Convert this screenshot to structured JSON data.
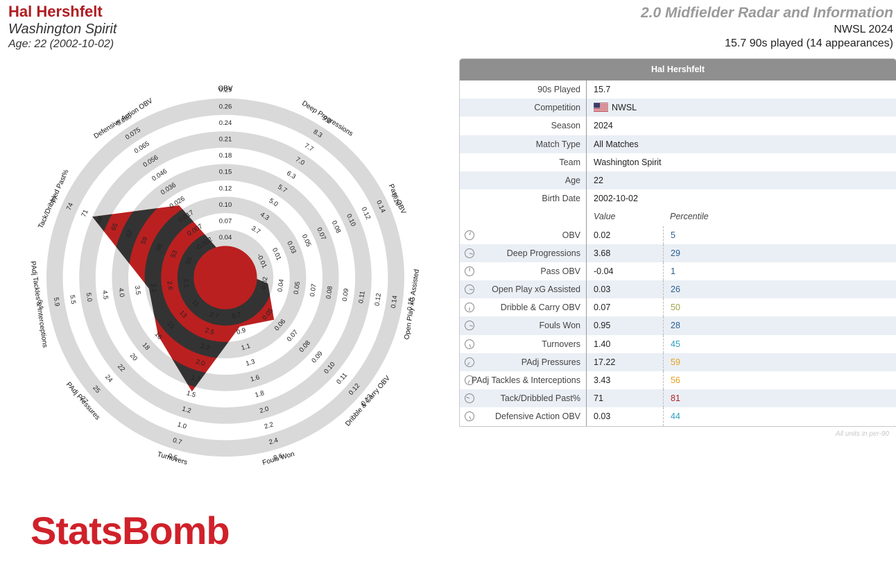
{
  "header": {
    "player_name": "Hal Hershfelt",
    "team": "Washington Spirit",
    "age_line": "Age: 22 (2002-10-02)",
    "radar_title": "2.0 Midfielder Radar and Information",
    "competition_season": "NWSL 2024",
    "played_line": "15.7 90s played (14 appearances)"
  },
  "colors": {
    "accent_red": "#b01c22",
    "band_fill": "#bb2020",
    "band_dark": "#333333",
    "ring_grey": "#d9d9d9",
    "pct_low": "#2a5f8f",
    "pct_teal": "#2b9fbf",
    "pct_olive": "#a2a24a",
    "pct_orange": "#e6a01e",
    "pct_red": "#b01c22"
  },
  "chart_data": {
    "type": "radar",
    "series": [
      {
        "values": [
          0.02,
          3.68,
          -0.04,
          0.03,
          0.07,
          0.95,
          1.4,
          17.22,
          3.43,
          71,
          0.03
        ]
      }
    ],
    "axes": [
      {
        "name": "OBV",
        "value": 0.02,
        "ticks": [
          "0.04",
          "0.07",
          "0.10",
          "0.12",
          "0.15",
          "0.18",
          "0.21",
          "0.24",
          "0.26",
          "0.29"
        ]
      },
      {
        "name": "Deep Progressions",
        "value": 3.68,
        "ticks": [
          "3.7",
          "4.3",
          "5.0",
          "5.7",
          "6.3",
          "7.0",
          "7.7",
          "8.3",
          "9.0"
        ]
      },
      {
        "name": "Pass OBV",
        "value": -0.04,
        "ticks": [
          "-0.01",
          "0.01",
          "0.03",
          "0.05",
          "0.07",
          "0.08",
          "0.10",
          "0.12",
          "0.14",
          "0.16"
        ]
      },
      {
        "name": "Open Play xG Assisted",
        "value": 0.03,
        "ticks": [
          "0.02",
          "0.04",
          "0.05",
          "0.07",
          "0.08",
          "0.09",
          "0.11",
          "0.12",
          "0.14",
          "0.15"
        ]
      },
      {
        "name": "Dribble & Carry OBV",
        "value": 0.07,
        "ticks": [
          "0.05",
          "0.06",
          "0.07",
          "0.08",
          "0.09",
          "0.10",
          "0.11",
          "0.12",
          "0.13"
        ]
      },
      {
        "name": "Fouls Won",
        "value": 0.95,
        "ticks": [
          "0.7",
          "0.9",
          "1.1",
          "1.3",
          "1.6",
          "1.8",
          "2.0",
          "2.2",
          "2.4",
          "2.6"
        ]
      },
      {
        "name": "Turnovers",
        "value": 1.4,
        "ticks": [
          "2.7",
          "2.5",
          "2.2",
          "2.0",
          "1.7",
          "1.5",
          "1.2",
          "1.0",
          "0.7",
          "0.5"
        ]
      },
      {
        "name": "PAdj Pressures",
        "value": 17.22,
        "ticks": [
          "11",
          "13",
          "15",
          "16",
          "18",
          "20",
          "22",
          "24",
          "25",
          "27"
        ]
      },
      {
        "name": "PAdj Tackles & Interceptions",
        "value": 3.43,
        "ticks": [
          "2.1",
          "2.6",
          "3.1",
          "3.5",
          "4.0",
          "4.5",
          "5.0",
          "5.5",
          "5.9",
          "6.4"
        ]
      },
      {
        "name": "Tack/Dribbled Past%",
        "value": 71,
        "ticks": [
          "50",
          "53",
          "56",
          "59",
          "62",
          "65",
          "68",
          "71",
          "74",
          "77"
        ]
      },
      {
        "name": "Defensive Action OBV",
        "value": 0.03,
        "ticks": [
          "-0.002",
          "0.007",
          "0.017",
          "0.026",
          "0.036",
          "0.046",
          "0.056",
          "0.065",
          "0.075",
          "0.085"
        ]
      }
    ],
    "ring_count": 10
  },
  "table": {
    "title": "Hal Hershfelt",
    "info_rows": [
      {
        "label": "90s Played",
        "value": "15.7"
      },
      {
        "label": "Competition",
        "value": "NWSL",
        "flag": "us-flag-icon"
      },
      {
        "label": "Season",
        "value": "2024"
      },
      {
        "label": "Match Type",
        "value": "All Matches"
      },
      {
        "label": "Team",
        "value": "Washington Spirit"
      },
      {
        "label": "Age",
        "value": "22"
      },
      {
        "label": "Birth Date",
        "value": "2002-10-02"
      }
    ],
    "col_value": "Value",
    "col_percentile": "Percentile",
    "metric_rows": [
      {
        "label": "OBV",
        "value": "0.02",
        "percentile": "5",
        "color": "#2a5f8f",
        "icon": "gauge-icon"
      },
      {
        "label": "Deep Progressions",
        "value": "3.68",
        "percentile": "29",
        "color": "#2a5f8f",
        "icon": "gauge-icon"
      },
      {
        "label": "Pass OBV",
        "value": "-0.04",
        "percentile": "1",
        "color": "#2a5f8f",
        "icon": "gauge-icon"
      },
      {
        "label": "Open Play xG Assisted",
        "value": "0.03",
        "percentile": "26",
        "color": "#2a5f8f",
        "icon": "gauge-icon"
      },
      {
        "label": "Dribble & Carry OBV",
        "value": "0.07",
        "percentile": "50",
        "color": "#a2a24a",
        "icon": "gauge-icon"
      },
      {
        "label": "Fouls Won",
        "value": "0.95",
        "percentile": "28",
        "color": "#2a5f8f",
        "icon": "gauge-icon"
      },
      {
        "label": "Turnovers",
        "value": "1.40",
        "percentile": "45",
        "color": "#2b9fbf",
        "icon": "gauge-icon"
      },
      {
        "label": "PAdj Pressures",
        "value": "17.22",
        "percentile": "59",
        "color": "#e6a01e",
        "icon": "gauge-icon"
      },
      {
        "label": "PAdj Tackles & Interceptions",
        "value": "3.43",
        "percentile": "56",
        "color": "#e6a01e",
        "icon": "gauge-icon"
      },
      {
        "label": "Tack/Dribbled Past%",
        "value": "71",
        "percentile": "81",
        "color": "#b01c22",
        "icon": "gauge-icon"
      },
      {
        "label": "Defensive Action OBV",
        "value": "0.03",
        "percentile": "44",
        "color": "#2b9fbf",
        "icon": "gauge-icon"
      }
    ]
  },
  "footnote": "All units in per-90",
  "logo_text": "StatsBomb"
}
